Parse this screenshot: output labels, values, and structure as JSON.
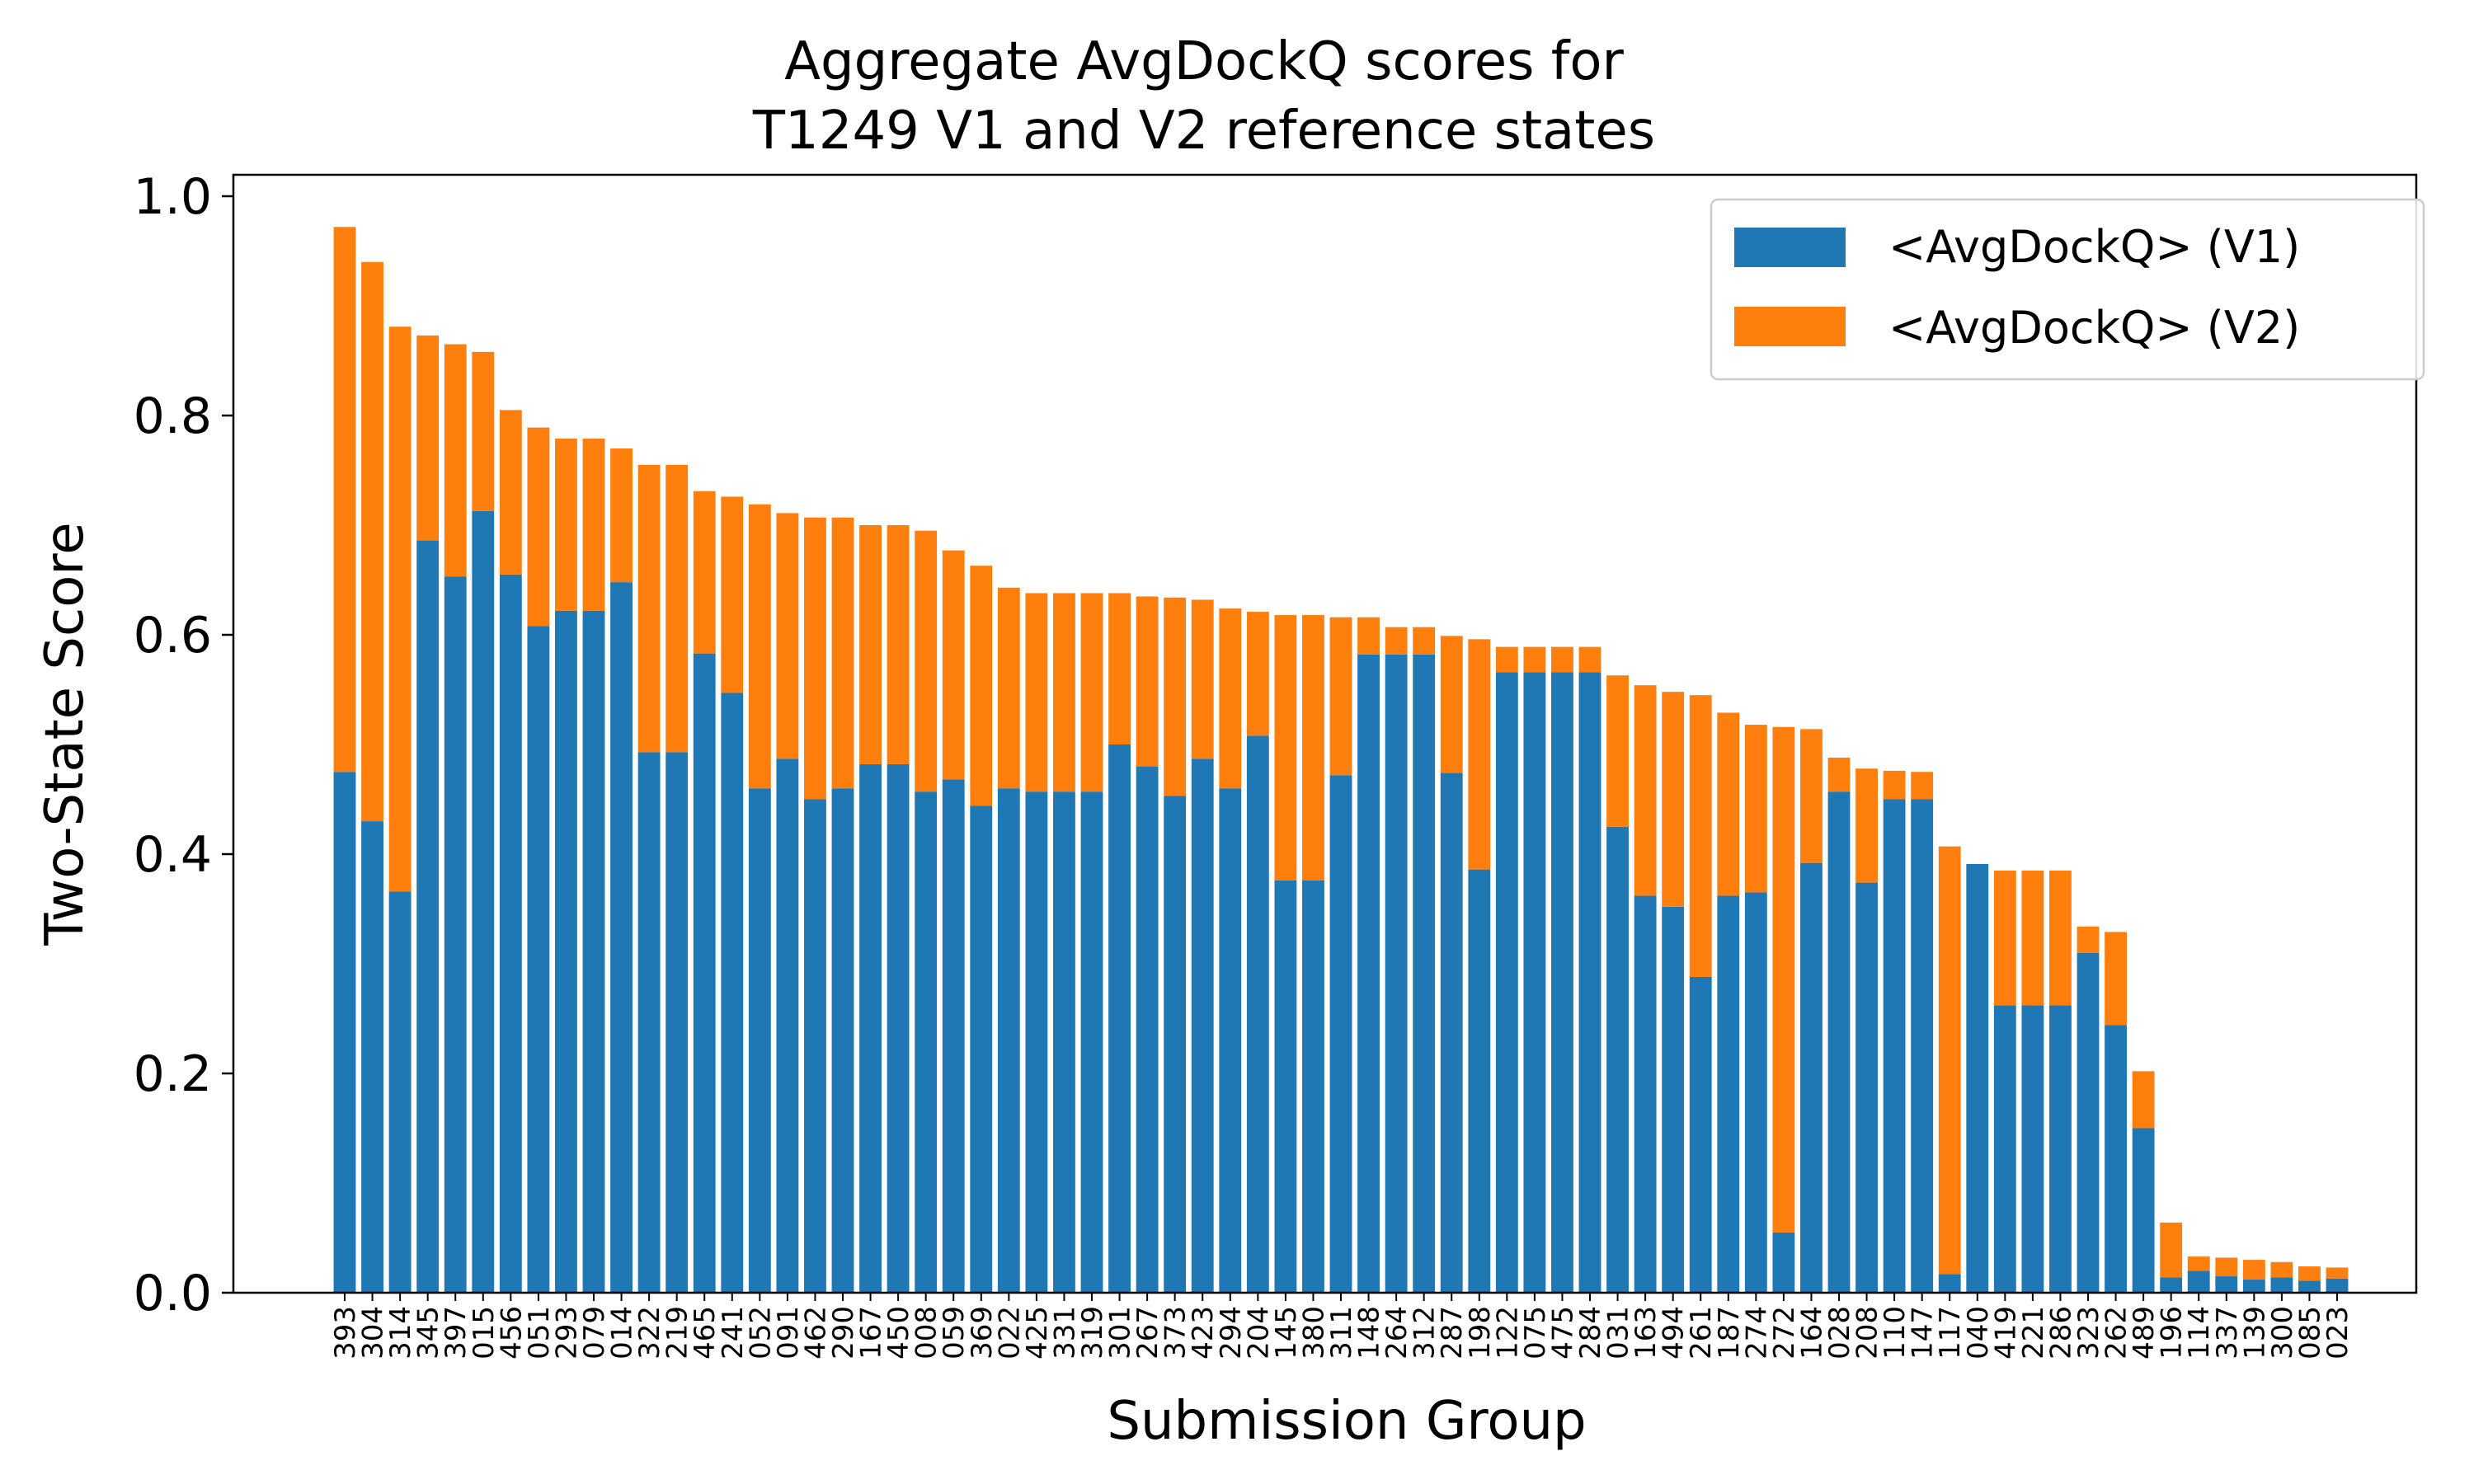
{
  "colors": {
    "v1": "#1f77b4",
    "v2": "#ff7f0e"
  },
  "chart_data": {
    "type": "bar",
    "stacked": true,
    "title_line1": "Aggregate AvgDockQ scores for",
    "title_line2": "T1249 V1 and V2 reference states",
    "xlabel": "Submission Group",
    "ylabel": "Two-State Score",
    "ylim": [
      0,
      1.0
    ],
    "yticks": [
      "0.0",
      "0.2",
      "0.4",
      "0.6",
      "0.8",
      "1.0"
    ],
    "legend_position": "top-right",
    "categories": [
      "393",
      "304",
      "314",
      "345",
      "397",
      "015",
      "456",
      "051",
      "293",
      "079",
      "014",
      "322",
      "219",
      "465",
      "241",
      "052",
      "091",
      "462",
      "290",
      "167",
      "450",
      "008",
      "059",
      "369",
      "022",
      "425",
      "331",
      "319",
      "301",
      "267",
      "373",
      "423",
      "294",
      "204",
      "145",
      "380",
      "311",
      "148",
      "264",
      "312",
      "287",
      "198",
      "122",
      "075",
      "475",
      "284",
      "031",
      "163",
      "494",
      "261",
      "187",
      "274",
      "272",
      "164",
      "028",
      "208",
      "110",
      "147",
      "117",
      "040",
      "419",
      "221",
      "286",
      "323",
      "262",
      "489",
      "196",
      "114",
      "337",
      "139",
      "300",
      "085",
      "023"
    ],
    "series": [
      {
        "name": "<AvgDockQ> (V1)",
        "values": [
          0.475,
          0.43,
          0.366,
          0.686,
          0.653,
          0.713,
          0.655,
          0.608,
          0.622,
          0.622,
          0.648,
          0.493,
          0.493,
          0.583,
          0.547,
          0.46,
          0.487,
          0.45,
          0.46,
          0.482,
          0.482,
          0.457,
          0.468,
          0.444,
          0.46,
          0.457,
          0.457,
          0.457,
          0.5,
          0.48,
          0.453,
          0.487,
          0.46,
          0.508,
          0.376,
          0.376,
          0.472,
          0.582,
          0.582,
          0.582,
          0.474,
          0.386,
          0.566,
          0.566,
          0.566,
          0.566,
          0.425,
          0.362,
          0.352,
          0.288,
          0.362,
          0.365,
          0.055,
          0.392,
          0.457,
          0.374,
          0.45,
          0.45,
          0.017,
          0.391,
          0.262,
          0.262,
          0.262,
          0.31,
          0.244,
          0.15,
          0.014,
          0.02,
          0.015,
          0.012,
          0.014,
          0.011,
          0.013
        ]
      },
      {
        "name": "<AvgDockQ> (V2)",
        "values": [
          0.497,
          0.51,
          0.515,
          0.187,
          0.212,
          0.145,
          0.15,
          0.181,
          0.157,
          0.157,
          0.122,
          0.262,
          0.262,
          0.148,
          0.179,
          0.259,
          0.224,
          0.257,
          0.247,
          0.218,
          0.218,
          0.238,
          0.209,
          0.219,
          0.183,
          0.181,
          0.181,
          0.181,
          0.138,
          0.155,
          0.181,
          0.145,
          0.164,
          0.113,
          0.242,
          0.242,
          0.144,
          0.034,
          0.025,
          0.025,
          0.125,
          0.21,
          0.023,
          0.023,
          0.023,
          0.023,
          0.138,
          0.192,
          0.196,
          0.257,
          0.167,
          0.153,
          0.461,
          0.122,
          0.031,
          0.104,
          0.026,
          0.025,
          0.39,
          0.0,
          0.123,
          0.123,
          0.123,
          0.024,
          0.085,
          0.052,
          0.05,
          0.013,
          0.017,
          0.018,
          0.014,
          0.013,
          0.01
        ]
      }
    ]
  }
}
